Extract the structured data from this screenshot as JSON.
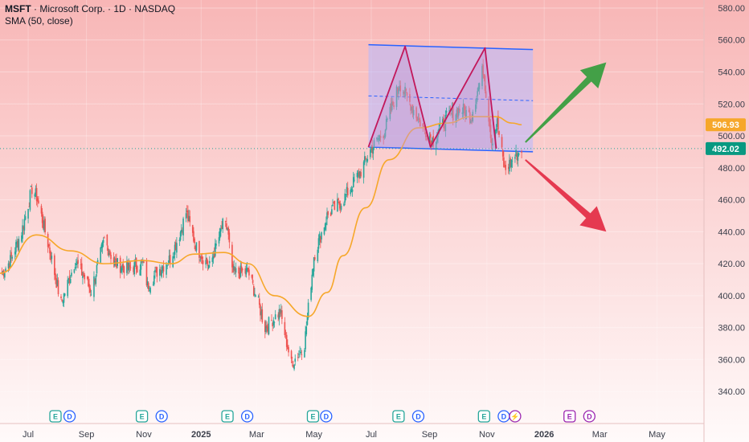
{
  "header": {
    "symbol": "MSFT",
    "name": "Microsoft Corp.",
    "interval": "1D",
    "exchange": "NASDAQ",
    "indicator": "SMA (50, close)"
  },
  "colors": {
    "up": "#26a69a",
    "down": "#ef5350",
    "sma": "#f6a72a",
    "channel_line": "#2962ff",
    "channel_fill": "#b6b8ff",
    "pattern_line": "#c2185b",
    "pattern_fill": "#c39bd3",
    "arrow_up": "#43a047",
    "arrow_down": "#e53950",
    "earnings": "#26a69a",
    "dividend": "#2962ff",
    "split": "#9c27b0"
  },
  "chart_data": {
    "type": "candlestick",
    "symbol": "MSFT",
    "ylim": [
      322,
      585
    ],
    "xlim": [
      "2024-06-01",
      "2026-06-20"
    ],
    "y_ticks": [
      "340.00",
      "360.00",
      "380.00",
      "400.00",
      "420.00",
      "440.00",
      "460.00",
      "480.00",
      "500.00",
      "520.00",
      "540.00",
      "560.00",
      "580.00"
    ],
    "x_ticks": [
      {
        "label": "Jul",
        "date": "2024-07-01",
        "bold": false
      },
      {
        "label": "Sep",
        "date": "2024-09-01",
        "bold": false
      },
      {
        "label": "Nov",
        "date": "2024-11-01",
        "bold": false
      },
      {
        "label": "2025",
        "date": "2025-01-01",
        "bold": true
      },
      {
        "label": "Mar",
        "date": "2025-03-01",
        "bold": false
      },
      {
        "label": "May",
        "date": "2025-05-01",
        "bold": false
      },
      {
        "label": "Jul",
        "date": "2025-07-01",
        "bold": false
      },
      {
        "label": "Sep",
        "date": "2025-09-01",
        "bold": false
      },
      {
        "label": "Nov",
        "date": "2025-11-01",
        "bold": false
      },
      {
        "label": "2026",
        "date": "2026-01-01",
        "bold": true
      },
      {
        "label": "Mar",
        "date": "2026-03-01",
        "bold": false
      },
      {
        "label": "May",
        "date": "2026-05-01",
        "bold": false
      }
    ],
    "close_path": [
      [
        "2024-06-01",
        412
      ],
      [
        "2024-06-12",
        422
      ],
      [
        "2024-06-24",
        440
      ],
      [
        "2024-07-05",
        467
      ],
      [
        "2024-07-10",
        462
      ],
      [
        "2024-07-24",
        428
      ],
      [
        "2024-08-05",
        395
      ],
      [
        "2024-08-20",
        422
      ],
      [
        "2024-09-06",
        403
      ],
      [
        "2024-09-20",
        435
      ],
      [
        "2024-10-01",
        420
      ],
      [
        "2024-10-15",
        417
      ],
      [
        "2024-10-31",
        420
      ],
      [
        "2024-11-05",
        406
      ],
      [
        "2024-11-15",
        415
      ],
      [
        "2024-11-29",
        423
      ],
      [
        "2024-12-10",
        440
      ],
      [
        "2024-12-16",
        452
      ],
      [
        "2024-12-27",
        430
      ],
      [
        "2025-01-10",
        418
      ],
      [
        "2025-01-24",
        444
      ],
      [
        "2025-01-29",
        442
      ],
      [
        "2025-02-03",
        414
      ],
      [
        "2025-02-20",
        415
      ],
      [
        "2025-03-03",
        395
      ],
      [
        "2025-03-10",
        380
      ],
      [
        "2025-03-26",
        390
      ],
      [
        "2025-04-07",
        357
      ],
      [
        "2025-04-21",
        370
      ],
      [
        "2025-05-01",
        425
      ],
      [
        "2025-05-15",
        450
      ],
      [
        "2025-06-01",
        460
      ],
      [
        "2025-06-20",
        478
      ],
      [
        "2025-07-01",
        492
      ],
      [
        "2025-07-15",
        503
      ],
      [
        "2025-07-31",
        533
      ],
      [
        "2025-08-10",
        522
      ],
      [
        "2025-08-25",
        505
      ],
      [
        "2025-09-05",
        497
      ],
      [
        "2025-09-20",
        512
      ],
      [
        "2025-10-05",
        517
      ],
      [
        "2025-10-15",
        512
      ],
      [
        "2025-10-28",
        542
      ],
      [
        "2025-11-06",
        497
      ],
      [
        "2025-11-12",
        508
      ],
      [
        "2025-11-20",
        478
      ],
      [
        "2025-11-28",
        485
      ],
      [
        "2025-12-08",
        492
      ]
    ],
    "sma_50": [
      [
        "2024-06-01",
        414
      ],
      [
        "2024-07-10",
        438
      ],
      [
        "2024-08-15",
        428
      ],
      [
        "2024-09-20",
        420
      ],
      [
        "2024-10-31",
        422
      ],
      [
        "2024-11-30",
        420
      ],
      [
        "2024-12-25",
        426
      ],
      [
        "2025-01-25",
        427
      ],
      [
        "2025-02-20",
        420
      ],
      [
        "2025-03-20",
        400
      ],
      [
        "2025-04-25",
        387
      ],
      [
        "2025-05-15",
        402
      ],
      [
        "2025-06-01",
        425
      ],
      [
        "2025-06-25",
        455
      ],
      [
        "2025-07-20",
        485
      ],
      [
        "2025-08-20",
        505
      ],
      [
        "2025-09-20",
        508
      ],
      [
        "2025-10-15",
        512
      ],
      [
        "2025-11-10",
        512
      ],
      [
        "2025-11-28",
        508
      ],
      [
        "2025-12-08",
        506.93
      ]
    ],
    "price_labels": [
      {
        "value": "506.93",
        "y": 506.93,
        "kind": "sma"
      },
      {
        "value": "492.02",
        "y": 492.02,
        "kind": "last"
      }
    ],
    "last_price_line": 492.02,
    "channel": {
      "upper": [
        [
          "2025-06-28",
          557
        ],
        [
          "2025-12-20",
          554
        ]
      ],
      "lower": [
        [
          "2025-06-28",
          493
        ],
        [
          "2025-12-20",
          490
        ]
      ],
      "middle": [
        [
          "2025-06-28",
          525
        ],
        [
          "2025-12-20",
          522
        ]
      ]
    },
    "double_top": [
      [
        "2025-06-28",
        493
      ],
      [
        "2025-08-06",
        556
      ],
      [
        "2025-09-02",
        493
      ],
      [
        "2025-10-30",
        555
      ],
      [
        "2025-11-11",
        492
      ]
    ],
    "arrows": [
      {
        "direction": "up",
        "from": [
          "2025-12-12",
          496
        ],
        "to": [
          "2026-03-08",
          546
        ]
      },
      {
        "direction": "down",
        "from": [
          "2025-12-12",
          485
        ],
        "to": [
          "2026-03-08",
          440
        ]
      }
    ],
    "events": [
      {
        "type": "E",
        "date": "2024-07-30"
      },
      {
        "type": "D",
        "date": "2024-08-14"
      },
      {
        "type": "E",
        "date": "2024-10-30"
      },
      {
        "type": "D",
        "date": "2024-11-20"
      },
      {
        "type": "E",
        "date": "2025-01-29"
      },
      {
        "type": "D",
        "date": "2025-02-19"
      },
      {
        "type": "E",
        "date": "2025-04-30"
      },
      {
        "type": "D",
        "date": "2025-05-14"
      },
      {
        "type": "E",
        "date": "2025-07-30"
      },
      {
        "type": "D",
        "date": "2025-08-20"
      },
      {
        "type": "E",
        "date": "2025-10-29"
      },
      {
        "type": "D",
        "date": "2025-11-19"
      },
      {
        "type": "S",
        "date": "2025-12-01"
      },
      {
        "type": "E-future",
        "date": "2026-01-28"
      },
      {
        "type": "D-future",
        "date": "2026-02-18"
      }
    ]
  }
}
